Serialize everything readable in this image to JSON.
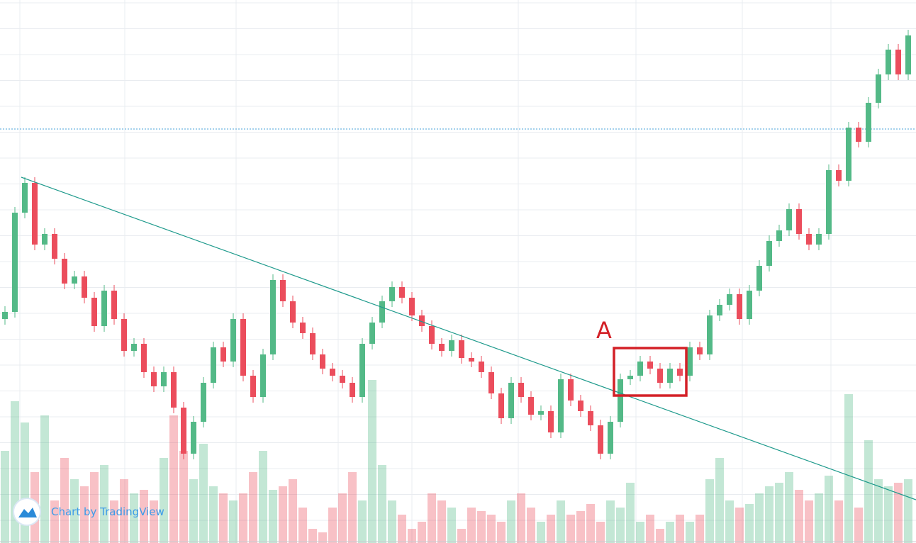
{
  "chart_data": {
    "type": "candlestick",
    "annotation": "A",
    "watermark": "Chart by TradingView",
    "up_color": "#53b987",
    "down_color": "#eb4d5c",
    "ylim": [
      0,
      766
    ],
    "y2lim": [
      0,
      766
    ],
    "open": [
      316,
      326,
      466,
      508,
      421,
      436,
      401,
      366,
      376,
      346,
      306,
      356,
      316,
      271,
      281,
      241,
      221,
      241,
      191,
      126,
      171,
      226,
      276,
      256,
      316,
      236,
      206,
      266,
      371,
      341,
      311,
      296,
      266,
      246,
      236,
      226,
      206,
      281,
      311,
      341,
      361,
      346,
      321,
      306,
      281,
      271,
      286,
      261,
      256,
      241,
      211,
      176,
      226,
      206,
      181,
      186,
      156,
      231,
      201,
      186,
      166,
      126,
      171,
      231,
      236,
      256,
      246,
      226,
      246,
      236,
      276,
      266,
      321,
      336,
      351,
      316,
      356,
      391,
      426,
      441,
      471,
      436,
      421,
      436,
      526,
      511,
      586,
      566,
      621,
      661,
      696,
      661
    ],
    "high": [
      334,
      474,
      516,
      516,
      444,
      444,
      409,
      384,
      384,
      354,
      364,
      364,
      324,
      289,
      289,
      249,
      249,
      249,
      199,
      179,
      234,
      284,
      284,
      324,
      324,
      244,
      274,
      379,
      379,
      349,
      319,
      304,
      274,
      254,
      244,
      234,
      289,
      319,
      349,
      369,
      369,
      354,
      329,
      314,
      289,
      294,
      294,
      269,
      264,
      249,
      219,
      234,
      234,
      214,
      194,
      194,
      239,
      239,
      209,
      194,
      174,
      179,
      239,
      244,
      264,
      264,
      254,
      254,
      254,
      284,
      284,
      329,
      344,
      359,
      359,
      364,
      399,
      434,
      449,
      479,
      479,
      444,
      444,
      534,
      534,
      594,
      594,
      629,
      669,
      704,
      704,
      724
    ],
    "low": [
      308,
      318,
      458,
      413,
      413,
      393,
      358,
      358,
      338,
      298,
      298,
      308,
      263,
      263,
      233,
      213,
      213,
      183,
      118,
      118,
      163,
      218,
      248,
      248,
      228,
      198,
      198,
      258,
      333,
      303,
      288,
      258,
      238,
      228,
      218,
      198,
      198,
      273,
      303,
      333,
      338,
      313,
      298,
      273,
      263,
      263,
      253,
      248,
      233,
      203,
      168,
      168,
      198,
      173,
      173,
      148,
      148,
      193,
      178,
      158,
      118,
      118,
      163,
      223,
      228,
      238,
      218,
      218,
      228,
      228,
      258,
      258,
      313,
      328,
      308,
      308,
      348,
      383,
      418,
      433,
      428,
      413,
      413,
      428,
      503,
      503,
      558,
      558,
      613,
      653,
      653,
      653
    ],
    "close": [
      326,
      466,
      508,
      421,
      436,
      401,
      366,
      376,
      346,
      306,
      356,
      316,
      271,
      281,
      241,
      221,
      241,
      191,
      126,
      171,
      226,
      276,
      256,
      316,
      236,
      206,
      266,
      371,
      341,
      311,
      296,
      266,
      246,
      236,
      226,
      206,
      281,
      311,
      341,
      361,
      346,
      321,
      306,
      281,
      271,
      286,
      261,
      256,
      241,
      211,
      176,
      226,
      206,
      181,
      186,
      156,
      231,
      201,
      186,
      166,
      126,
      171,
      231,
      236,
      256,
      246,
      226,
      246,
      236,
      276,
      266,
      321,
      336,
      351,
      316,
      356,
      391,
      426,
      441,
      471,
      436,
      421,
      436,
      526,
      511,
      586,
      566,
      621,
      661,
      696,
      661,
      716
    ],
    "volume": [
      130,
      200,
      170,
      100,
      180,
      60,
      120,
      90,
      80,
      100,
      110,
      60,
      90,
      70,
      75,
      60,
      120,
      180,
      130,
      90,
      140,
      80,
      70,
      60,
      70,
      100,
      130,
      75,
      80,
      90,
      50,
      20,
      15,
      50,
      70,
      100,
      60,
      230,
      110,
      60,
      40,
      20,
      30,
      70,
      60,
      50,
      20,
      50,
      45,
      40,
      30,
      60,
      70,
      50,
      30,
      40,
      60,
      40,
      45,
      55,
      30,
      60,
      50,
      85,
      30,
      40,
      20,
      30,
      40,
      30,
      40,
      90,
      120,
      60,
      50,
      55,
      70,
      80,
      85,
      100,
      75,
      60,
      70,
      95,
      60,
      210,
      50,
      145,
      90,
      80,
      85,
      90
    ]
  }
}
